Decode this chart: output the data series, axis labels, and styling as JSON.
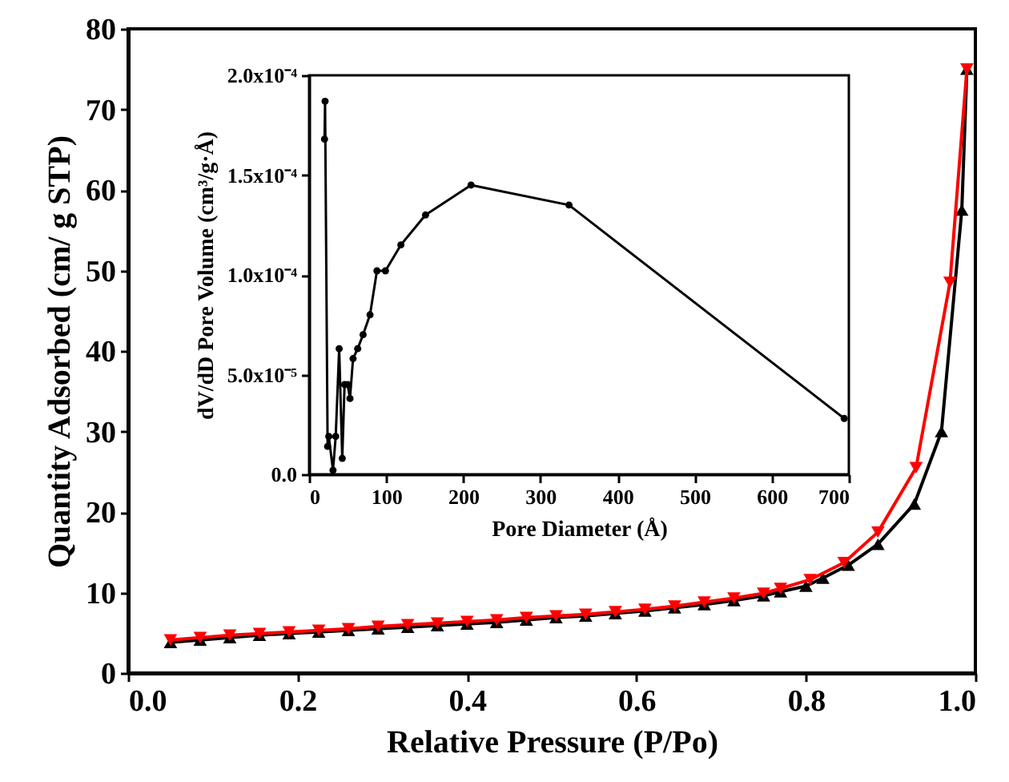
{
  "chart_data": [
    {
      "type": "line",
      "xlabel": "Relative Pressure (P/Po)",
      "ylabel": "Quantity Adsorbed (cm/ g STP)",
      "xlim": [
        0,
        1
      ],
      "ylim": [
        0,
        80
      ],
      "xticks": [
        {
          "value": 0,
          "label": "0.0"
        },
        0.2,
        0.4,
        0.6,
        0.8,
        {
          "value": 1,
          "label": "1.0"
        }
      ],
      "yticks": [
        0,
        10,
        20,
        30,
        40,
        50,
        60,
        70,
        80
      ],
      "grid": false,
      "series": [
        {
          "color": "#000000",
          "marker": "triangle-up",
          "x": [
            0.05,
            0.085,
            0.12,
            0.155,
            0.19,
            0.225,
            0.26,
            0.295,
            0.33,
            0.365,
            0.4,
            0.435,
            0.47,
            0.505,
            0.54,
            0.575,
            0.61,
            0.645,
            0.68,
            0.715,
            0.75,
            0.77,
            0.8,
            0.82,
            0.85,
            0.885,
            0.928,
            0.96,
            0.984,
            0.99
          ],
          "values": [
            3.8,
            4.1,
            4.4,
            4.7,
            4.9,
            5.1,
            5.3,
            5.5,
            5.7,
            5.9,
            6.1,
            6.3,
            6.6,
            6.9,
            7.1,
            7.4,
            7.7,
            8.1,
            8.5,
            9.0,
            9.6,
            10.1,
            10.8,
            11.8,
            13.4,
            16.0,
            21.0,
            30.0,
            57.5,
            75.0
          ]
        },
        {
          "color": "#ff0000",
          "marker": "triangle-down",
          "x": [
            0.05,
            0.085,
            0.12,
            0.155,
            0.19,
            0.225,
            0.26,
            0.295,
            0.33,
            0.365,
            0.4,
            0.435,
            0.47,
            0.505,
            0.54,
            0.575,
            0.61,
            0.645,
            0.68,
            0.715,
            0.75,
            0.77,
            0.805,
            0.845,
            0.885,
            0.93,
            0.97,
            0.99
          ],
          "values": [
            4.1,
            4.4,
            4.7,
            4.9,
            5.1,
            5.3,
            5.5,
            5.8,
            6.0,
            6.2,
            6.4,
            6.6,
            6.9,
            7.1,
            7.3,
            7.6,
            7.9,
            8.3,
            8.8,
            9.3,
            9.9,
            10.5,
            11.6,
            13.7,
            17.5,
            25.5,
            48.5,
            75.0
          ]
        }
      ]
    },
    {
      "type": "line",
      "xlabel": "Pore Diameter (Å)",
      "ylabel": "dV/dD Pore Volume (cm³/g·Å)",
      "xlim": [
        0,
        700
      ],
      "ylim": [
        0,
        0.0002
      ],
      "xticks": [
        0,
        100,
        200,
        300,
        400,
        500,
        600,
        700
      ],
      "yticks": [
        {
          "value": 0,
          "label": "0.0"
        },
        {
          "value": 5e-05,
          "label": "5.0x10⁻⁵"
        },
        {
          "value": 0.0001,
          "label": "1.0x10⁻⁴"
        },
        {
          "value": 0.00015,
          "label": "1.5x10⁻⁴"
        },
        {
          "value": 0.0002,
          "label": "2.0x10⁻⁴"
        }
      ],
      "grid": false,
      "series": [
        {
          "color": "#000000",
          "marker": "circle",
          "x": [
            20,
            20.7,
            24,
            25.5,
            31,
            34.5,
            39,
            43,
            46,
            50,
            53,
            57,
            63,
            70,
            79,
            88,
            99,
            119,
            151,
            210,
            337,
            694
          ],
          "values": [
            0.000168,
            0.000187,
            1.4e-05,
            1.9e-05,
            2e-06,
            1.9e-05,
            6.3e-05,
            8e-06,
            4.5e-05,
            4.5e-05,
            3.8e-05,
            5.8e-05,
            6.3e-05,
            7e-05,
            8e-05,
            0.000102,
            0.000102,
            0.000115,
            0.00013,
            0.000145,
            0.000135,
            2.8e-05
          ]
        }
      ]
    }
  ]
}
